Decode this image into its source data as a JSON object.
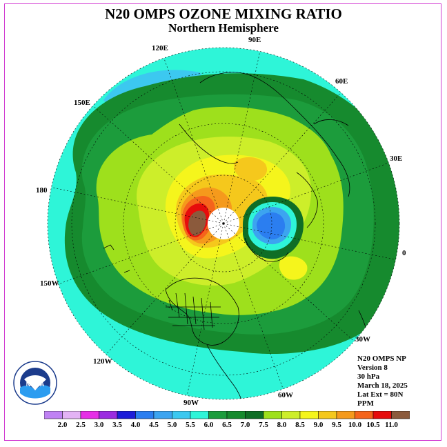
{
  "header": {
    "title": "N20 OMPS OZONE MIXING RATIO",
    "subtitle": "Northern Hemisphere"
  },
  "map": {
    "projection": "polar stereographic, north pole",
    "longitude_labels": [
      {
        "key": "120e",
        "text": "120E"
      },
      {
        "key": "90e",
        "text": "90E"
      },
      {
        "key": "60e",
        "text": "60E"
      },
      {
        "key": "150e",
        "text": "150E"
      },
      {
        "key": "30e",
        "text": "30E"
      },
      {
        "key": "180",
        "text": "180"
      },
      {
        "key": "0",
        "text": "0"
      },
      {
        "key": "150w",
        "text": "150W"
      },
      {
        "key": "30w",
        "text": "30W"
      },
      {
        "key": "120w",
        "text": "120W"
      },
      {
        "key": "60w",
        "text": "60W"
      },
      {
        "key": "90w",
        "text": "90W"
      }
    ],
    "polar_hole_color": "#ffffff",
    "coastline_color": "#000000"
  },
  "info": {
    "line1": "N20 OMPS NP",
    "line2": "Version 8",
    "line3": "30 hPa",
    "line4": "March 18, 2025",
    "line5": "Lat Ext = 80N",
    "line6": "PPM"
  },
  "logo": {
    "name": "NOAA",
    "ring_text": "NATIONAL OCEANIC AND ATMOSPHERIC ADMINISTRATION · U.S. DEPARTMENT OF COMMERCE"
  },
  "colorbar": {
    "labels": [
      "2.0",
      "2.5",
      "3.0",
      "3.5",
      "4.0",
      "4.5",
      "5.0",
      "5.5",
      "6.0",
      "6.5",
      "7.0",
      "7.5",
      "8.0",
      "8.5",
      "9.0",
      "9.5",
      "10.0",
      "10.5",
      "11.0"
    ],
    "colors": [
      "#bf82f3",
      "#e3b3f5",
      "#e62ee6",
      "#9b2be0",
      "#1c1cd8",
      "#2b7ef0",
      "#3ca4f0",
      "#3cc8f0",
      "#2ef5d8",
      "#1c9c3c",
      "#168a2e",
      "#0f6e26",
      "#9ee01c",
      "#cdee2a",
      "#f5f51c",
      "#f5c81c",
      "#f59a1c",
      "#f5641c",
      "#e60c0c",
      "#8b5a3c"
    ]
  },
  "colors": {
    "frame": "#d13ad1",
    "ocean_outer": "#2ef5d8",
    "band_6_5": "#1c9c3c",
    "band_7_0": "#168a2e",
    "band_7_5": "#9ee01c",
    "band_8_0": "#cdee2a",
    "band_8_5": "#f5f51c",
    "band_9_0": "#f5c81c",
    "band_9_5": "#f59a1c",
    "band_10_0": "#f5641c",
    "band_10_5": "#e60c0c",
    "band_11_0": "#8b5a3c",
    "low_blue": "#2b7ef0",
    "low_lightblue": "#3ca4f0"
  }
}
